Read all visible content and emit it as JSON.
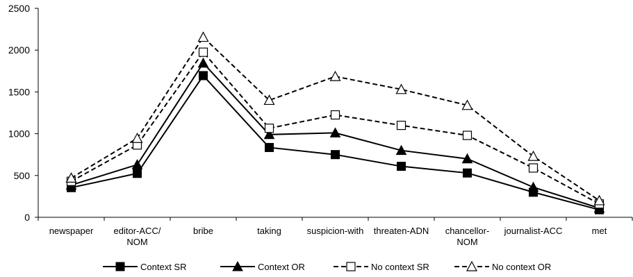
{
  "chart_data": {
    "type": "line",
    "title": "",
    "xlabel": "",
    "ylabel": "",
    "ylim": [
      0,
      2500
    ],
    "yticks": [
      0,
      500,
      1000,
      1500,
      2000,
      2500
    ],
    "grid": false,
    "legend_position": "bottom",
    "categories": [
      [
        "newspaper"
      ],
      [
        "editor-ACC/",
        "NOM"
      ],
      [
        "bribe"
      ],
      [
        "taking"
      ],
      [
        "suspicion-with"
      ],
      [
        "threaten-ADN"
      ],
      [
        "chancellor-",
        "NOM"
      ],
      [
        "journalist-ACC"
      ],
      [
        "met"
      ]
    ],
    "series": [
      {
        "name": "Context SR",
        "marker": "square-filled",
        "line": "solid",
        "values": [
          355,
          525,
          1695,
          835,
          750,
          610,
          530,
          300,
          90
        ]
      },
      {
        "name": "Context OR",
        "marker": "triangle-filled",
        "line": "solid",
        "values": [
          385,
          630,
          1845,
          990,
          1010,
          800,
          700,
          360,
          110
        ]
      },
      {
        "name": "No context SR",
        "marker": "square-open",
        "line": "dashed",
        "values": [
          430,
          865,
          1975,
          1065,
          1225,
          1100,
          980,
          590,
          160
        ]
      },
      {
        "name": "No context OR",
        "marker": "triangle-open",
        "line": "dashed",
        "values": [
          470,
          945,
          2155,
          1400,
          1685,
          1530,
          1340,
          730,
          200
        ]
      }
    ]
  }
}
